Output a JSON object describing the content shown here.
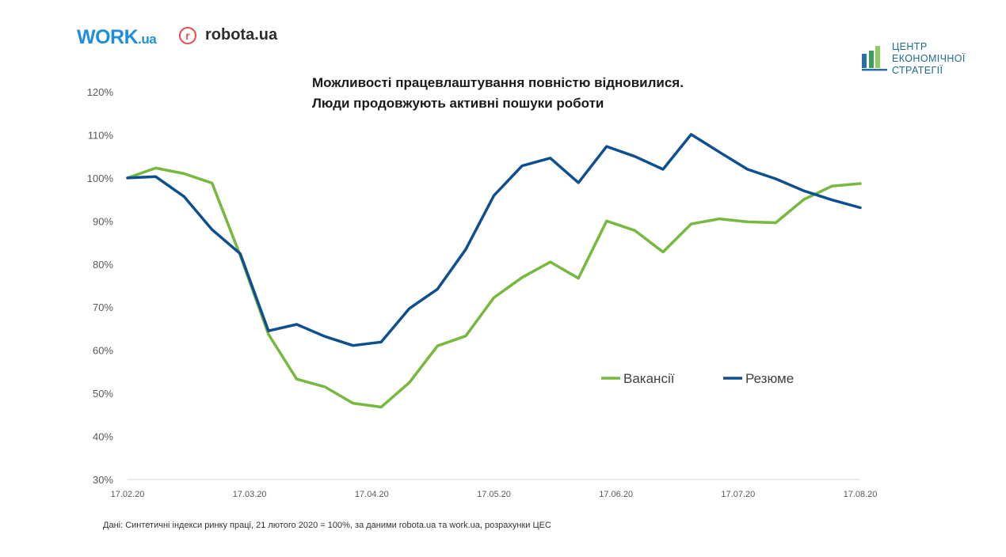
{
  "logos": {
    "work_main": "WORK",
    "work_suffix": ".ua",
    "robota_mark": "r",
    "robota_text": "robota.ua",
    "ces_line1": "ЦЕНТР",
    "ces_line2": "ЕКОНОМІЧНОЇ",
    "ces_line3": "СТРАТЕГІЇ"
  },
  "colors": {
    "vacancies": "#77b83f",
    "resumes": "#0e4f90",
    "work_brand": "#1f8fd9",
    "robota_brand": "#e94b4b",
    "ces_brand": "#1c6c8f"
  },
  "footnote": "Дані: Синтетичні індекси ринку праці, 21 лютого 2020 = 100%, за даними robota.ua та work.ua, розрахунки ЦЕС",
  "chart_data": {
    "type": "line",
    "title": "Можливості працевлаштування повністю відновилися.",
    "subtitle": "Люди продовжують активні пошуки роботи",
    "xlabel": "",
    "ylabel": "",
    "ylim": [
      30,
      120
    ],
    "yticks": [
      30,
      40,
      50,
      60,
      70,
      80,
      90,
      100,
      110,
      120
    ],
    "ytick_suffix": "%",
    "x_tick_labels": [
      "17.02.20",
      "17.03.20",
      "17.04.20",
      "17.05.20",
      "17.06.20",
      "17.07.20",
      "17.08.20"
    ],
    "x_tick_weeks": [
      0,
      4.333,
      8.667,
      13,
      17.333,
      21.667,
      26
    ],
    "x": [
      0,
      1,
      2,
      3,
      4,
      5,
      6,
      7,
      8,
      9,
      10,
      11,
      12,
      13,
      14,
      15,
      16,
      17,
      18,
      19,
      20,
      21,
      22,
      23,
      24,
      25,
      26
    ],
    "legend_position": "right-middle",
    "grid": false,
    "series": [
      {
        "name": "Вакансії",
        "color": "#77b83f",
        "values": [
          100,
          102.3,
          101,
          98.8,
          82,
          63.7,
          53.3,
          51.5,
          47.7,
          46.8,
          52.5,
          61,
          63.3,
          72.2,
          76.9,
          80.5,
          76.7,
          90,
          87.8,
          82.8,
          89.3,
          90.5,
          89.8,
          89.6,
          95,
          98.1,
          98.7
        ]
      },
      {
        "name": "Резюме",
        "color": "#0e4f90",
        "values": [
          100,
          100.3,
          95.7,
          88,
          82.4,
          64.5,
          66,
          63.2,
          61.1,
          61.9,
          69.7,
          74.2,
          83.4,
          95.9,
          102.8,
          104.6,
          98.9,
          107.3,
          105,
          102,
          110.1,
          106,
          102,
          99.8,
          97,
          94.9,
          93.1
        ]
      }
    ]
  }
}
